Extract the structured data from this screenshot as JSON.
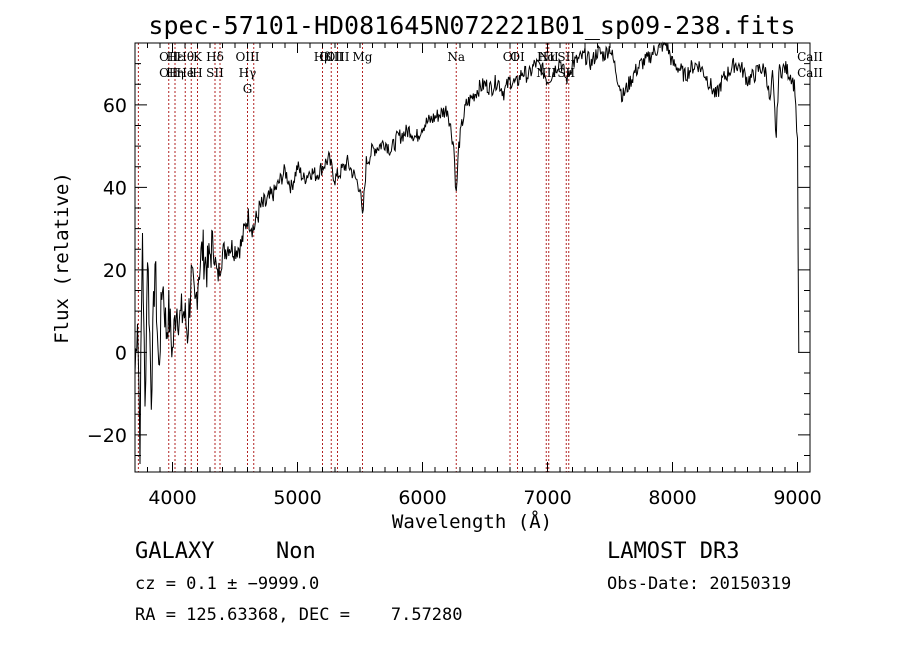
{
  "chart_data": {
    "type": "line",
    "title": "spec-57101-HD081645N072221B01_sp09-238.fits",
    "xlabel": "Wavelength (Å)",
    "ylabel": "Flux (relative)",
    "xlim": [
      3700,
      9100
    ],
    "ylim": [
      -29,
      75
    ],
    "x_ticks": [
      4000,
      5000,
      6000,
      7000,
      8000,
      9000
    ],
    "y_ticks": [
      -20,
      0,
      20,
      40,
      60
    ],
    "grid": false,
    "series": [
      {
        "x": [
          3700,
          3720,
          3740,
          3760,
          3780,
          3800,
          3830,
          3860,
          3890,
          3920,
          3950,
          3970,
          4000,
          4030,
          4060,
          4090,
          4120,
          4150,
          4180,
          4210,
          4240,
          4280,
          4320,
          4360,
          4400,
          4450,
          4500,
          4550,
          4600,
          4650,
          4700,
          4750,
          4800,
          4850,
          4900,
          4950,
          5000,
          5050,
          5100,
          5150,
          5200,
          5250,
          5300,
          5350,
          5400,
          5450,
          5500,
          5520,
          5550,
          5600,
          5650,
          5700,
          5750,
          5800,
          5850,
          5900,
          5950,
          6000,
          6050,
          6100,
          6150,
          6200,
          6250,
          6270,
          6290,
          6320,
          6350,
          6400,
          6450,
          6500,
          6550,
          6600,
          6650,
          6700,
          6750,
          6800,
          6850,
          6900,
          6950,
          7000,
          7050,
          7100,
          7150,
          7200,
          7250,
          7300,
          7350,
          7400,
          7450,
          7500,
          7550,
          7600,
          7650,
          7700,
          7750,
          7800,
          7850,
          7900,
          7950,
          8000,
          8050,
          8100,
          8150,
          8200,
          8250,
          8300,
          8350,
          8400,
          8450,
          8500,
          8550,
          8600,
          8650,
          8700,
          8750,
          8780,
          8800,
          8830,
          8850,
          8900,
          8950,
          8980,
          9000,
          9010
        ],
        "y": [
          -5,
          10,
          -22,
          30,
          -15,
          25,
          -10,
          22,
          -5,
          18,
          5,
          10,
          0,
          12,
          8,
          10,
          5,
          18,
          10,
          20,
          25,
          20,
          27,
          18,
          24,
          26,
          25,
          26,
          33,
          30,
          35,
          36,
          38,
          41,
          44,
          40,
          45,
          42,
          44,
          43,
          45,
          47,
          42,
          44,
          46,
          43,
          40,
          32,
          46,
          49,
          50,
          51,
          49,
          52,
          53,
          54,
          52,
          55,
          56,
          57,
          58,
          59,
          50,
          38,
          50,
          56,
          60,
          62,
          64,
          65,
          64,
          66,
          63,
          66,
          65,
          68,
          67,
          70,
          69,
          66,
          68,
          71,
          66,
          70,
          71,
          72,
          70,
          73,
          72,
          74,
          68,
          62,
          65,
          68,
          70,
          71,
          73,
          74,
          75,
          70,
          69,
          67,
          69,
          70,
          68,
          65,
          62,
          66,
          68,
          70,
          69,
          66,
          67,
          69,
          68,
          60,
          67,
          52,
          68,
          69,
          67,
          64,
          50,
          0
        ]
      }
    ],
    "lines": [
      {
        "wl": 3727,
        "labels": []
      },
      {
        "wl": 3970,
        "labels": [
          "OII",
          "OII"
        ]
      },
      {
        "wl": 4020,
        "labels": [
          "Hε",
          "Hη"
        ]
      },
      {
        "wl": 4102,
        "labels": [
          "Hθ",
          "He",
          ""
        ]
      },
      {
        "wl": 4150,
        "labels": [
          "",
          "I",
          ""
        ]
      },
      {
        "wl": 4200,
        "labels": [
          "K",
          "H"
        ]
      },
      {
        "wl": 4340,
        "labels": [
          "Hδ",
          "SII"
        ]
      },
      {
        "wl": 4380,
        "labels": []
      },
      {
        "wl": 4600,
        "labels": [
          "OIII",
          "Hγ",
          "G"
        ]
      },
      {
        "wl": 4650,
        "labels": []
      },
      {
        "wl": 5200,
        "labels": [
          "Hβ"
        ]
      },
      {
        "wl": 5270,
        "labels": [
          "OIII"
        ]
      },
      {
        "wl": 5320,
        "labels": [
          "OIII"
        ]
      },
      {
        "wl": 5520,
        "labels": [
          "Mg"
        ]
      },
      {
        "wl": 6270,
        "labels": [
          "Na"
        ]
      },
      {
        "wl": 6700,
        "labels": [
          "OI"
        ]
      },
      {
        "wl": 6760,
        "labels": [
          "OI"
        ]
      },
      {
        "wl": 6990,
        "labels": [
          "Hα",
          "NII"
        ]
      },
      {
        "wl": 7010,
        "labels": [
          "NII"
        ]
      },
      {
        "wl": 7150,
        "labels": [
          "SII",
          "SII"
        ]
      },
      {
        "wl": 7170,
        "labels": []
      }
    ],
    "top_right_labels": [
      "CaII",
      "CaII"
    ]
  },
  "info": {
    "class": "GALAXY",
    "subclass": "Non",
    "survey": "LAMOST DR3",
    "cz": "cz = 0.1 ± −9999.0",
    "obs_date": "Obs-Date: 20150319",
    "radec": "RA = 125.63368, DEC =    7.57280"
  }
}
